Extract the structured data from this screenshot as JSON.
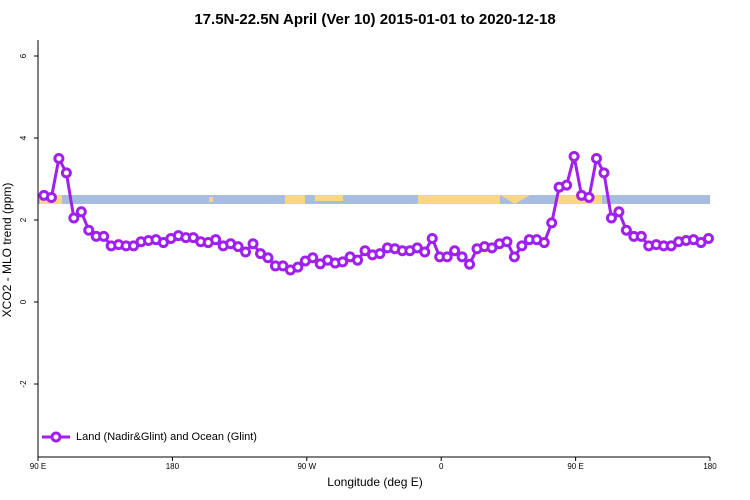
{
  "chart_data": {
    "type": "line",
    "title": "17.5N-22.5N April (Ver 10)   2015-01-01 to 2020-12-18",
    "x_label": "Longitude (deg E)",
    "y_label": "XCO2 - MLO trend (ppm)",
    "x": [
      94,
      99,
      104,
      109,
      114,
      119,
      124,
      129,
      134,
      139,
      144,
      149,
      154,
      159,
      164,
      169,
      174,
      179,
      184,
      189,
      194,
      199,
      204,
      209,
      214,
      219,
      224,
      229,
      234,
      239,
      244,
      249,
      254,
      259,
      264,
      269,
      274,
      279,
      284,
      289,
      294,
      299,
      304,
      309,
      314,
      319,
      324,
      329,
      334,
      339,
      344,
      349,
      354,
      359,
      364,
      369,
      374,
      379,
      384,
      389,
      394,
      399,
      404,
      409,
      414,
      419,
      424,
      429,
      434,
      439,
      444,
      449,
      454,
      459,
      464,
      469,
      474,
      479,
      484,
      489,
      494,
      499,
      504,
      509,
      514,
      519,
      524,
      529,
      534,
      539
    ],
    "series": [
      {
        "name": "Land (Nadir&Glint) and Ocean (Glint)",
        "color": "#a020f0",
        "values": [
          2.6,
          2.55,
          3.5,
          3.15,
          2.05,
          2.2,
          1.75,
          1.6,
          1.6,
          1.37,
          1.4,
          1.37,
          1.37,
          1.47,
          1.5,
          1.52,
          1.45,
          1.55,
          1.62,
          1.57,
          1.57,
          1.47,
          1.45,
          1.52,
          1.37,
          1.42,
          1.35,
          1.22,
          1.42,
          1.18,
          1.08,
          0.88,
          0.88,
          0.78,
          0.85,
          1.0,
          1.08,
          0.93,
          1.02,
          0.95,
          0.98,
          1.1,
          1.02,
          1.25,
          1.15,
          1.18,
          1.32,
          1.3,
          1.25,
          1.25,
          1.32,
          1.22,
          1.55,
          1.1,
          1.1,
          1.25,
          1.1,
          0.92,
          1.3,
          1.35,
          1.32,
          1.42,
          1.47,
          1.1,
          1.37,
          1.52,
          1.52,
          1.45,
          1.93,
          2.8,
          2.85,
          3.55,
          2.6,
          2.55,
          3.5,
          3.15,
          2.05,
          2.2,
          1.75,
          1.6,
          1.6,
          1.37,
          1.4,
          1.37,
          1.37,
          1.47,
          1.5,
          1.52,
          1.45,
          1.55
        ]
      }
    ],
    "xlim": [
      90,
      540
    ],
    "xticks": [
      {
        "value": 90,
        "label": "90 E"
      },
      {
        "value": 180,
        "label": "180"
      },
      {
        "value": 270,
        "label": "90 W"
      },
      {
        "value": 360,
        "label": "0"
      },
      {
        "value": 450,
        "label": "90 E"
      },
      {
        "value": 540,
        "label": "180"
      }
    ],
    "ylim": [
      -3.78,
      6.39
    ],
    "yticks": [
      -2,
      0,
      2,
      4,
      6
    ],
    "legend": "bottom-left"
  }
}
